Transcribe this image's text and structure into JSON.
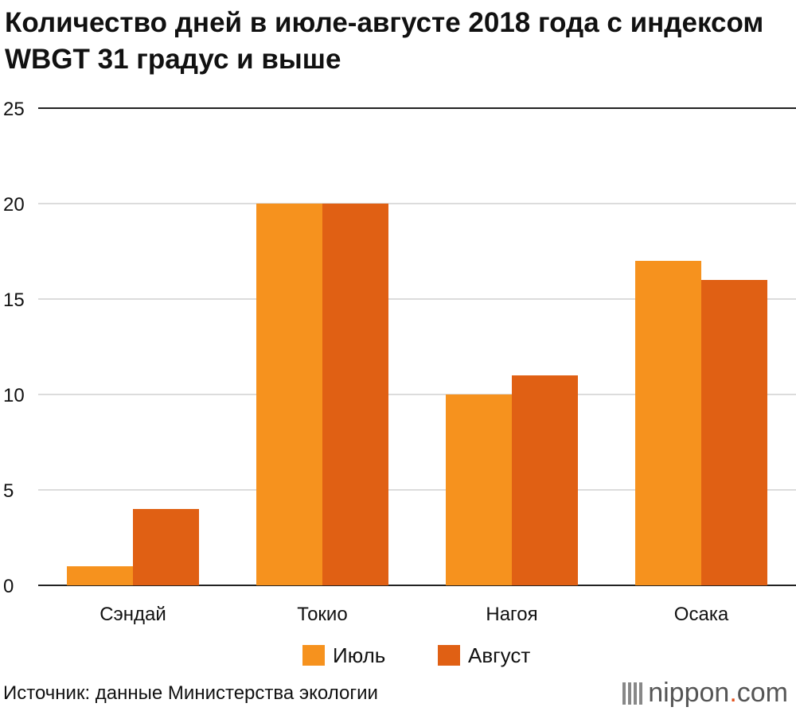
{
  "title": "Количество дней в июле-августе 2018 года с индексом WBGT 31 градус и выше",
  "source": "Источник: данные Министерства экологии",
  "logo": {
    "name": "nippon",
    "dot": ".",
    "suffix": "com"
  },
  "chart_data": {
    "type": "bar",
    "categories": [
      "Сэндай",
      "Токио",
      "Нагоя",
      "Осака"
    ],
    "series": [
      {
        "name": "Июль",
        "color": "#f6921e",
        "values": [
          1,
          20,
          10,
          17
        ]
      },
      {
        "name": "Август",
        "color": "#e06014",
        "values": [
          4,
          20,
          11,
          16
        ]
      }
    ],
    "ylim": [
      0,
      25
    ],
    "yticks": [
      "0",
      "5",
      "10",
      "15",
      "20",
      "25"
    ],
    "grid": true,
    "legend": "bottom"
  }
}
